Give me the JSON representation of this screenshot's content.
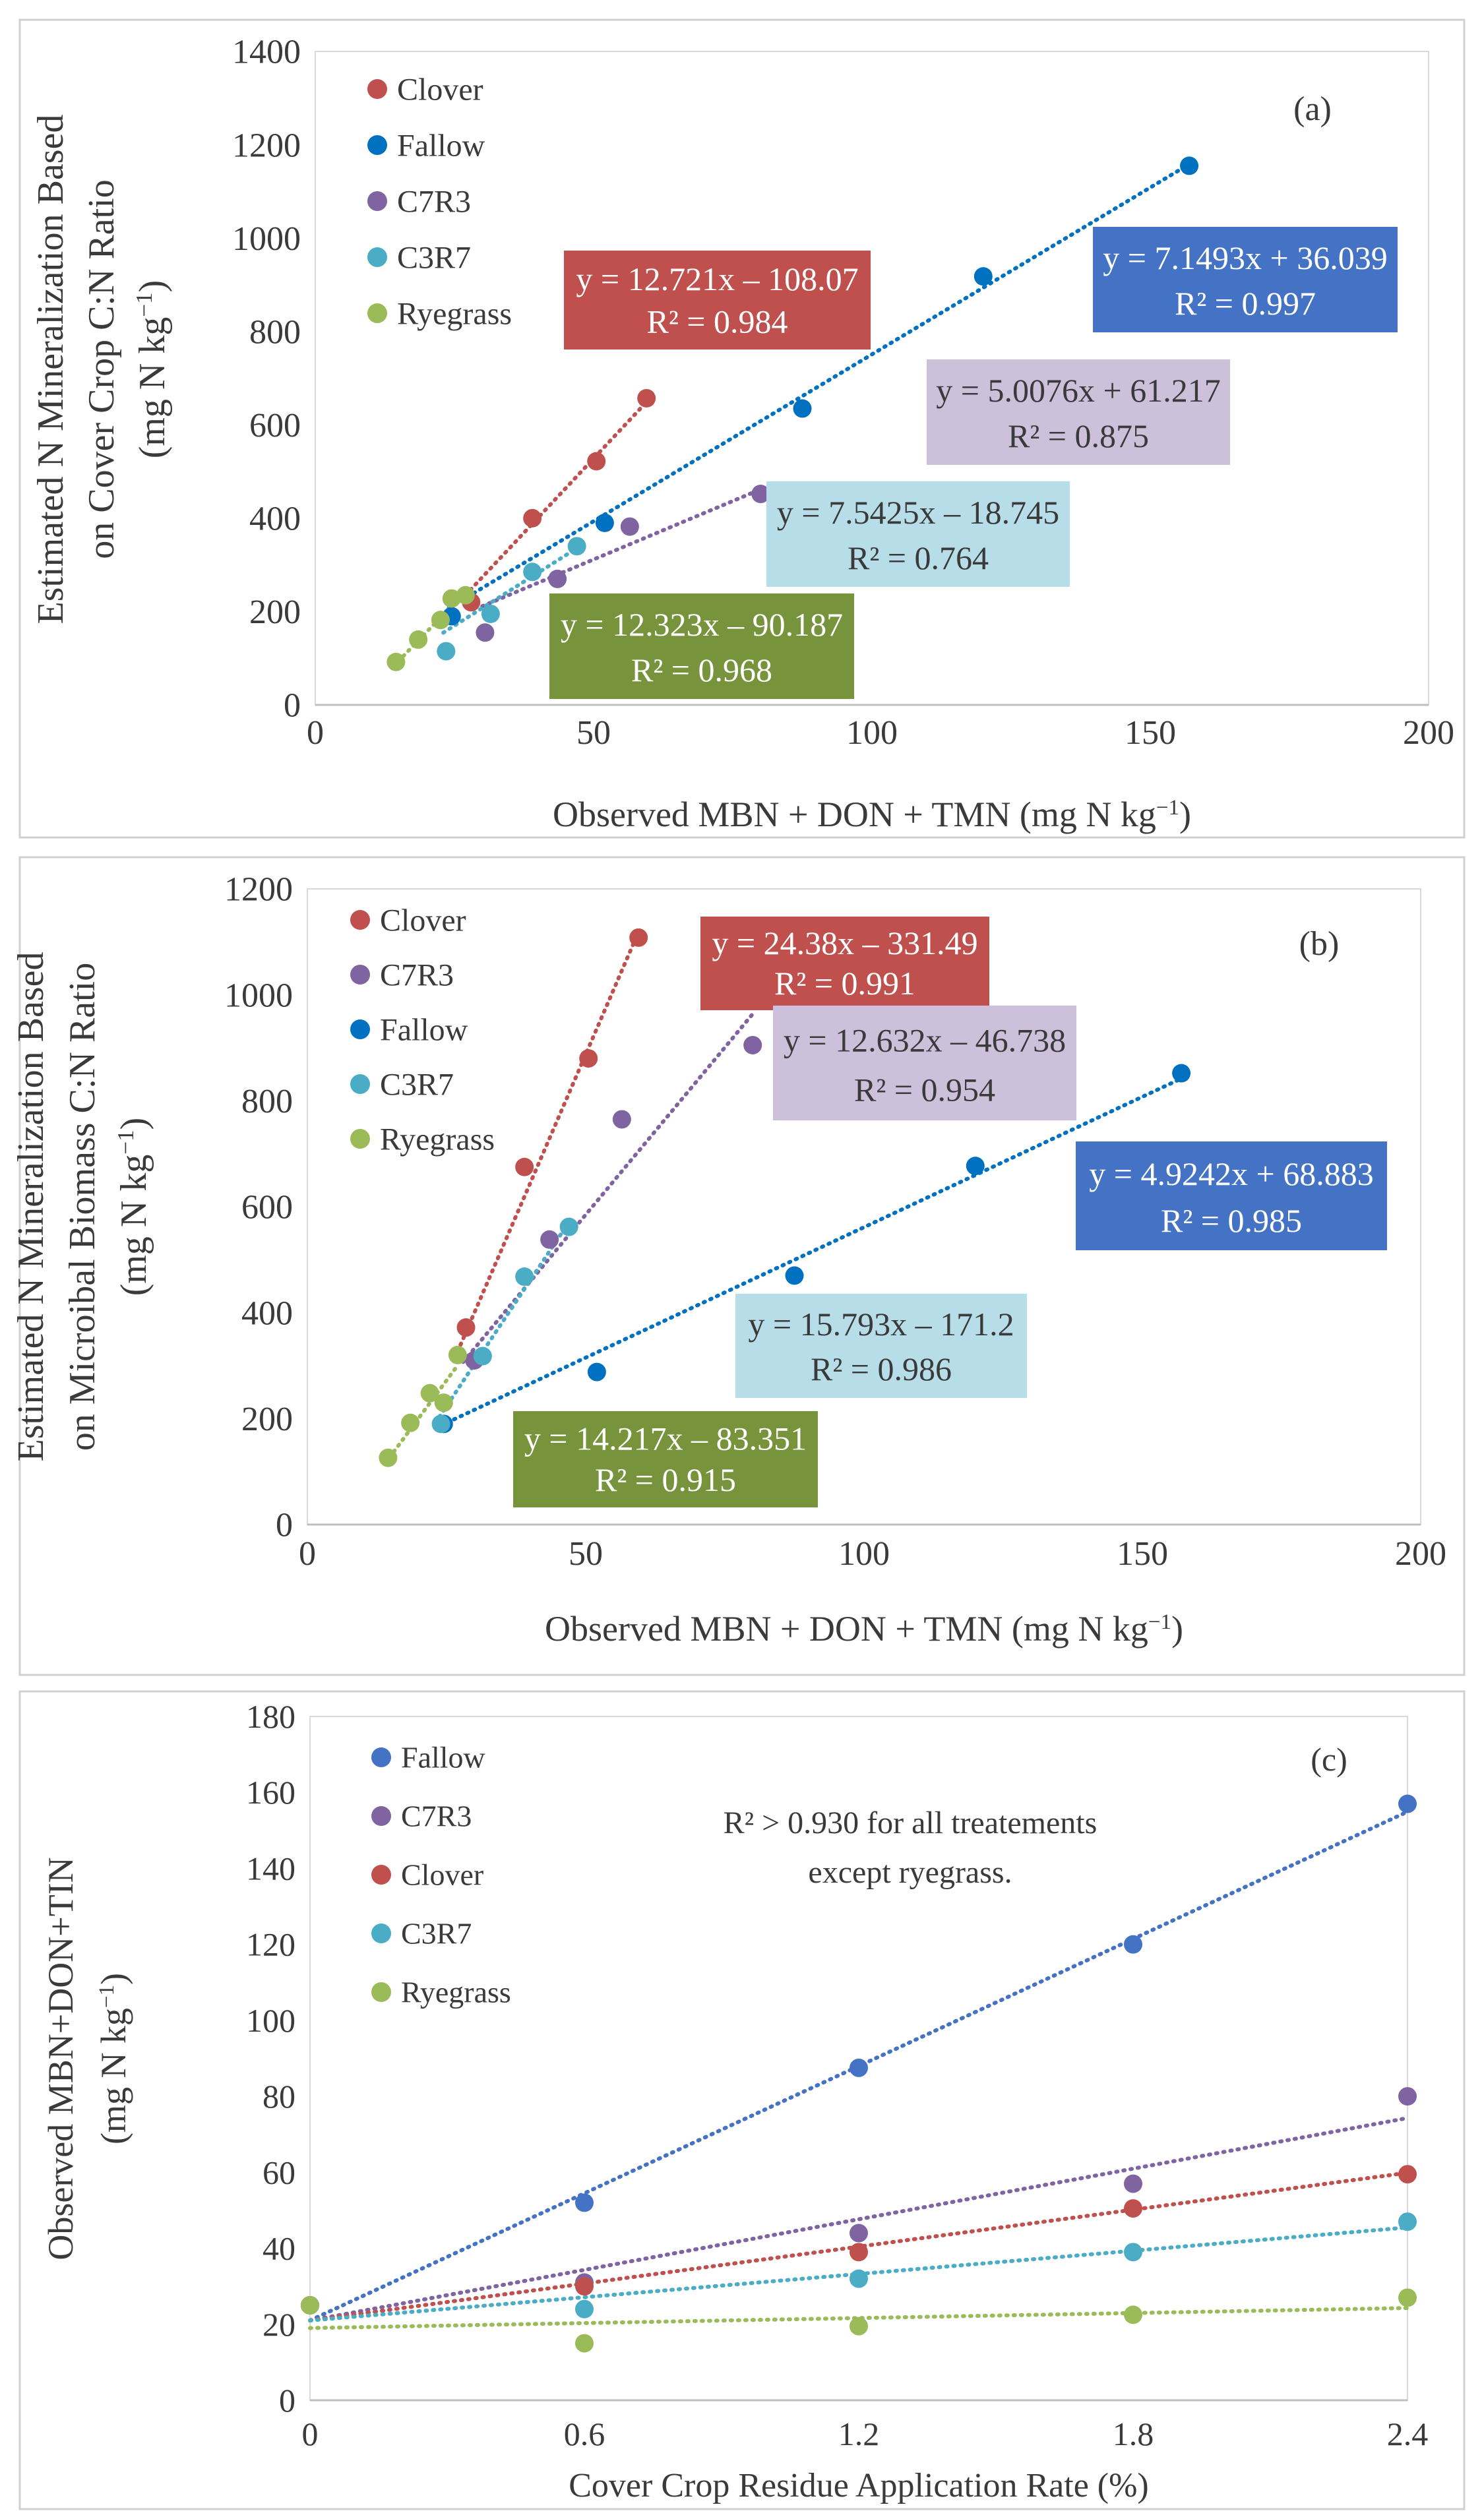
{
  "chart_data": [
    {
      "type": "scatter",
      "panel_label": "(a)",
      "xlabel_main": "Observed MBN + DON + TMN (mg N kg",
      "xlabel_sup": "−1",
      "xlabel_end": ")",
      "ylabel_line1": "Estimated N Mineralization Based",
      "ylabel_line2": "on Cover Crop C:N Ratio",
      "ylabel_line3_main": "(mg N kg",
      "ylabel_line3_sup": "−1",
      "ylabel_line3_end": ")",
      "xlim": [
        0,
        200
      ],
      "ylim": [
        0,
        1400
      ],
      "xticks": [
        0,
        50,
        100,
        150,
        200
      ],
      "yticks": [
        0,
        200,
        400,
        600,
        800,
        1000,
        1200,
        1400
      ],
      "grid": false,
      "legend_position": "top-left",
      "series": [
        {
          "name": "Clover",
          "color": "#c0504d",
          "x": [
            28,
            39,
            50.5,
            59.5
          ],
          "y": [
            220,
            400,
            522,
            657
          ],
          "slope": 12.721,
          "intercept": -108.07,
          "fit_x": [
            27,
            60
          ],
          "equation": "y = 12.721x – 108.07",
          "r2": "R² = 0.984",
          "box_color": "#c0504d",
          "text_color": "#ffffff"
        },
        {
          "name": "Fallow",
          "color": "#0070c0",
          "x": [
            24.5,
            52,
            87.5,
            120,
            157
          ],
          "y": [
            190,
            390,
            635,
            918,
            1155
          ],
          "slope": 7.1493,
          "intercept": 36.039,
          "fit_x": [
            24,
            157
          ],
          "equation": "y = 7.1493x + 36.039",
          "r2": "R² = 0.997",
          "box_color": "#4472c4",
          "text_color": "#ffffff"
        },
        {
          "name": "C7R3",
          "color": "#8064a2",
          "x": [
            30.5,
            43.5,
            56.5,
            80
          ],
          "y": [
            155,
            270,
            382,
            452
          ],
          "slope": 5.0076,
          "intercept": 61.217,
          "fit_x": [
            30,
            80
          ],
          "equation": "y = 5.0076x + 61.217",
          "r2": "R² = 0.875",
          "box_color": "#ccc0da",
          "text_color": "#3a3a3a"
        },
        {
          "name": "C3R7",
          "color": "#4bacc6",
          "x": [
            23.5,
            31.5,
            39,
            47
          ],
          "y": [
            115,
            195,
            285,
            340
          ],
          "slope": 7.5425,
          "intercept": -18.745,
          "fit_x": [
            23,
            47
          ],
          "equation": "y = 7.5425x – 18.745",
          "r2": "R² = 0.764",
          "box_color": "#b7dee8",
          "text_color": "#3a3a3a"
        },
        {
          "name": "Ryegrass",
          "color": "#9bbb59",
          "x": [
            14.5,
            18.5,
            22.5,
            24.5,
            27
          ],
          "y": [
            92,
            140,
            182,
            228,
            235
          ],
          "slope": 12.323,
          "intercept": -90.187,
          "fit_x": [
            14,
            27
          ],
          "equation": "y = 12.323x – 90.187",
          "r2": "R² = 0.968",
          "box_color": "#77933c",
          "text_color": "#ffffff"
        }
      ]
    },
    {
      "type": "scatter",
      "panel_label": "(b)",
      "xlabel_main": "Observed MBN + DON + TMN (mg N kg",
      "xlabel_sup": "−1",
      "xlabel_end": ")",
      "ylabel_line1": "Estimated N Mineralization Based",
      "ylabel_line2": "on Microibal Biomass C:N Ratio",
      "ylabel_line3_main": "(mg N kg",
      "ylabel_line3_sup": "−1",
      "ylabel_line3_end": ")",
      "xlim": [
        0,
        200
      ],
      "ylim": [
        0,
        1200
      ],
      "xticks": [
        0,
        50,
        100,
        150,
        200
      ],
      "yticks": [
        0,
        200,
        400,
        600,
        800,
        1000,
        1200
      ],
      "grid": false,
      "legend_position": "top-left",
      "series": [
        {
          "name": "Clover",
          "color": "#c0504d",
          "x": [
            28.5,
            39,
            50.5,
            59.5
          ],
          "y": [
            372,
            675,
            880,
            1108
          ],
          "slope": 24.38,
          "intercept": -331.49,
          "fit_x": [
            27,
            60
          ],
          "equation": "y = 24.38x – 331.49",
          "r2": "R² = 0.991",
          "box_color": "#c0504d",
          "text_color": "#ffffff"
        },
        {
          "name": "C7R3",
          "color": "#8064a2",
          "x": [
            30,
            43.5,
            56.5,
            80
          ],
          "y": [
            310,
            538,
            765,
            905
          ],
          "slope": 12.632,
          "intercept": -46.738,
          "fit_x": [
            28,
            80
          ],
          "equation": "y = 12.632x – 46.738",
          "r2": "R² = 0.954",
          "box_color": "#ccc0da",
          "text_color": "#3a3a3a"
        },
        {
          "name": "Fallow",
          "color": "#0070c0",
          "x": [
            24.5,
            52,
            87.5,
            120,
            157
          ],
          "y": [
            190,
            288,
            470,
            677,
            852
          ],
          "slope": 4.9242,
          "intercept": 68.883,
          "fit_x": [
            24,
            157
          ],
          "equation": "y = 4.9242x + 68.883",
          "r2": "R² = 0.985",
          "box_color": "#4472c4",
          "text_color": "#ffffff"
        },
        {
          "name": "C3R7",
          "color": "#4bacc6",
          "x": [
            24,
            31.5,
            39,
            47
          ],
          "y": [
            190,
            318,
            468,
            562
          ],
          "slope": 15.793,
          "intercept": -171.2,
          "fit_x": [
            23,
            47
          ],
          "equation": "y = 15.793x – 171.2",
          "r2": "R² = 0.986",
          "box_color": "#b7dee8",
          "text_color": "#3a3a3a"
        },
        {
          "name": "Ryegrass",
          "color": "#9bbb59",
          "x": [
            14.5,
            18.5,
            22,
            24.5,
            27
          ],
          "y": [
            126,
            192,
            248,
            230,
            320
          ],
          "slope": 14.217,
          "intercept": -83.351,
          "fit_x": [
            14,
            27
          ],
          "equation": "y = 14.217x – 83.351",
          "r2": "R² = 0.915",
          "box_color": "#77933c",
          "text_color": "#ffffff"
        }
      ]
    },
    {
      "type": "scatter",
      "panel_label": "(c)",
      "xlabel_main": "Cover Crop Residue Application Rate (%)",
      "xlabel_sup": "",
      "xlabel_end": "",
      "ylabel_line1": "Observed MBN+DON+TIN",
      "ylabel_line2": "",
      "ylabel_line3_main": "(mg N kg",
      "ylabel_line3_sup": "−1",
      "ylabel_line3_end": ")",
      "xlim": [
        0,
        2.4
      ],
      "ylim": [
        0,
        180
      ],
      "xticks": [
        0,
        0.6,
        1.2,
        1.8,
        2.4
      ],
      "yticks": [
        0,
        20,
        40,
        60,
        80,
        100,
        120,
        140,
        160,
        180
      ],
      "grid": false,
      "legend_position": "top-left",
      "annotation_line1": "R² > 0.930 for all treatements",
      "annotation_line2": "except  ryegrass.",
      "series": [
        {
          "name": "Fallow",
          "color": "#4472c4",
          "x": [
            0,
            0.6,
            1.2,
            1.8,
            2.4
          ],
          "y": [
            25,
            52,
            87.5,
            120,
            157
          ],
          "slope": 55.8,
          "intercept": 21,
          "fit_x": [
            0,
            2.4
          ]
        },
        {
          "name": "C7R3",
          "color": "#8064a2",
          "x": [
            0,
            0.6,
            1.2,
            1.8,
            2.4
          ],
          "y": [
            25,
            31,
            44,
            57,
            80
          ],
          "slope": 22.2,
          "intercept": 21,
          "fit_x": [
            0,
            2.4
          ]
        },
        {
          "name": "Clover",
          "color": "#c0504d",
          "x": [
            0,
            0.6,
            1.2,
            1.8,
            2.4
          ],
          "y": [
            25,
            30,
            39,
            50.5,
            59.5
          ],
          "slope": 16.2,
          "intercept": 21,
          "fit_x": [
            0,
            2.4
          ]
        },
        {
          "name": "C3R7",
          "color": "#4bacc6",
          "x": [
            0,
            0.6,
            1.2,
            1.8,
            2.4
          ],
          "y": [
            25,
            24,
            32,
            39,
            47
          ],
          "slope": 10.2,
          "intercept": 21,
          "fit_x": [
            0,
            2.4
          ]
        },
        {
          "name": "Ryegrass",
          "color": "#9bbb59",
          "x": [
            0,
            0.6,
            1.2,
            1.8,
            2.4
          ],
          "y": [
            25,
            15,
            19.5,
            22.5,
            27
          ],
          "slope": 2.2,
          "intercept": 19,
          "fit_x": [
            0,
            2.4
          ]
        }
      ]
    }
  ]
}
